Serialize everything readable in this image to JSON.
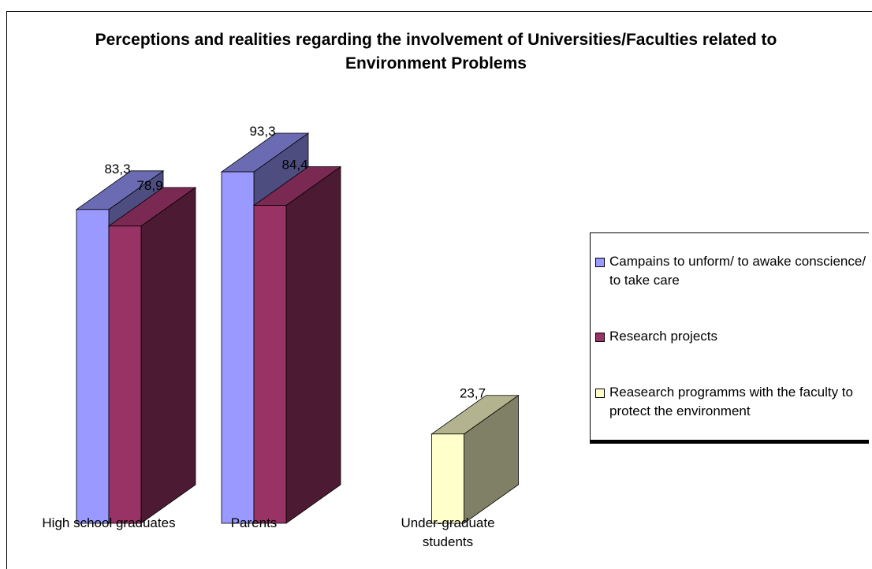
{
  "chart_data": {
    "type": "bar3d",
    "title": "Perceptions and realities regarding the involvement of Universities/Faculties related to Environment Problems",
    "categories": [
      "High school graduates",
      "Parents",
      "Under-graduate students"
    ],
    "series": [
      {
        "name": "Campains to unform/ to awake conscience/ to take care",
        "color": "#9999ff",
        "top": "#6b6bb3",
        "side": "#4d4d80",
        "values": [
          83.3,
          93.3,
          null
        ],
        "value_labels": [
          "83,3",
          "93,3",
          null
        ]
      },
      {
        "name": "Research projects",
        "color": "#993366",
        "top": "#7a2952",
        "side": "#4d1a33",
        "values": [
          78.9,
          84.4,
          null
        ],
        "value_labels": [
          "78,9",
          "84,4",
          null
        ]
      },
      {
        "name": "Reasearch programms with the faculty to protect the environment",
        "color": "#ffffcc",
        "top": "#b3b38f",
        "side": "#808066",
        "values": [
          null,
          null,
          23.7
        ],
        "value_labels": [
          null,
          null,
          "23,7"
        ]
      }
    ],
    "legend": "right"
  }
}
